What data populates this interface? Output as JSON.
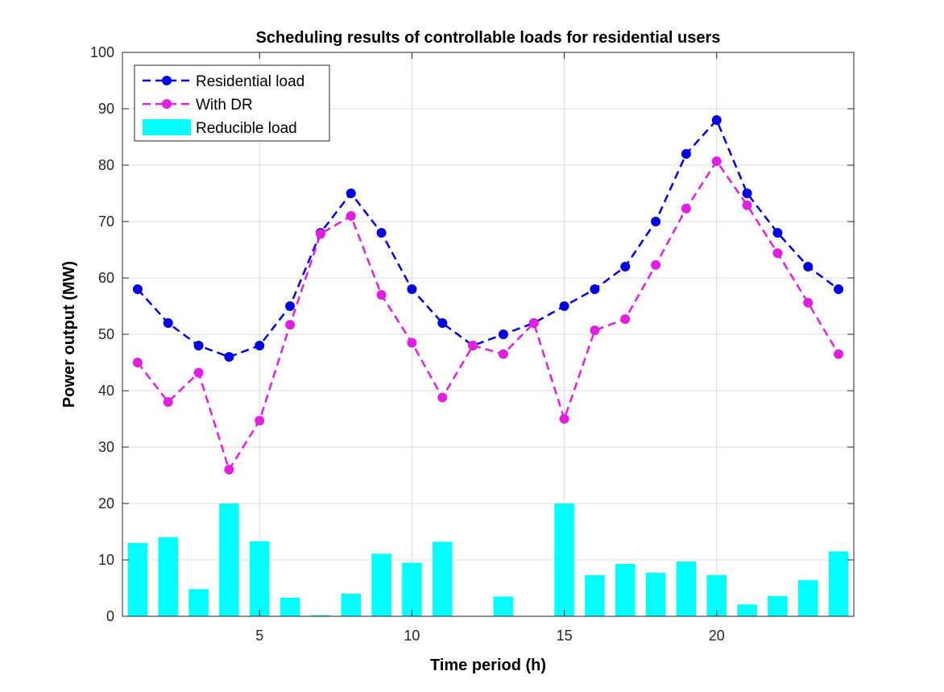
{
  "chart_data": {
    "type": "bar+line",
    "title": "Scheduling results of controllable loads for residential users",
    "xlabel": "Time period (h)",
    "ylabel": "Power output (MW)",
    "xlim": [
      0.5,
      24.5
    ],
    "ylim": [
      0,
      100
    ],
    "xticks": [
      5,
      10,
      15,
      20
    ],
    "yticks": [
      0,
      10,
      20,
      30,
      40,
      50,
      60,
      70,
      80,
      90,
      100
    ],
    "grid": true,
    "legend_position": "top-left",
    "x": [
      1,
      2,
      3,
      4,
      5,
      6,
      7,
      8,
      9,
      10,
      11,
      12,
      13,
      14,
      15,
      16,
      17,
      18,
      19,
      20,
      21,
      22,
      23,
      24
    ],
    "series": [
      {
        "name": "Residential load",
        "kind": "line",
        "style": "dashed-dot-marker",
        "color": "#0000e0",
        "values": [
          58,
          52,
          48,
          46,
          48,
          55,
          68,
          75,
          68,
          58,
          52,
          48,
          50,
          52,
          55,
          58,
          62,
          70,
          82,
          88,
          75,
          68,
          62,
          58
        ]
      },
      {
        "name": "With DR",
        "kind": "line",
        "style": "dashed-dot-marker",
        "color": "#e01fe0",
        "values": [
          45,
          38,
          43.2,
          26,
          34.7,
          51.7,
          67.8,
          71,
          57,
          48.5,
          38.8,
          48,
          46.5,
          52,
          35,
          50.7,
          52.7,
          62.3,
          72.3,
          80.7,
          72.9,
          64.4,
          55.6,
          46.5
        ]
      },
      {
        "name": "Reducible load",
        "kind": "bar",
        "color": "#00ffff",
        "values": [
          13,
          14,
          4.8,
          20,
          13.3,
          3.3,
          0.2,
          4,
          11.1,
          9.5,
          13.2,
          0,
          3.5,
          0,
          20,
          7.3,
          9.3,
          7.7,
          9.7,
          7.3,
          2.1,
          3.6,
          6.4,
          11.5
        ]
      }
    ]
  }
}
